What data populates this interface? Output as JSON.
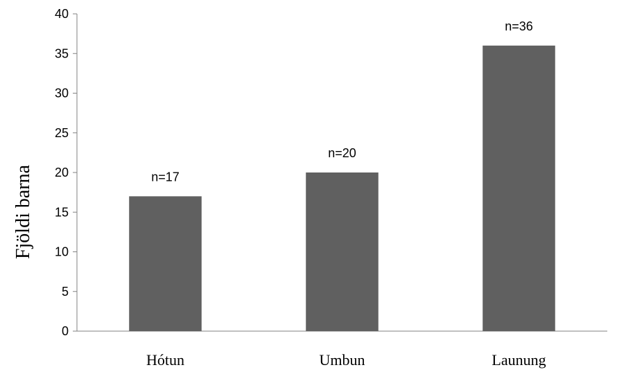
{
  "chart_data": {
    "type": "bar",
    "title": "",
    "xlabel": "",
    "ylabel": "Fjöldi barna",
    "categories": [
      "Hótun",
      "Umbun",
      "Launung"
    ],
    "values": [
      17,
      20,
      36
    ],
    "data_labels": [
      "n=17",
      "n=20",
      "n=36"
    ],
    "ylim": [
      0,
      40
    ],
    "yticks": [
      0,
      5,
      10,
      15,
      20,
      25,
      30,
      35,
      40
    ],
    "grid": false,
    "legend": "none",
    "bar_color": "#606060",
    "axis_color": "#808080"
  }
}
